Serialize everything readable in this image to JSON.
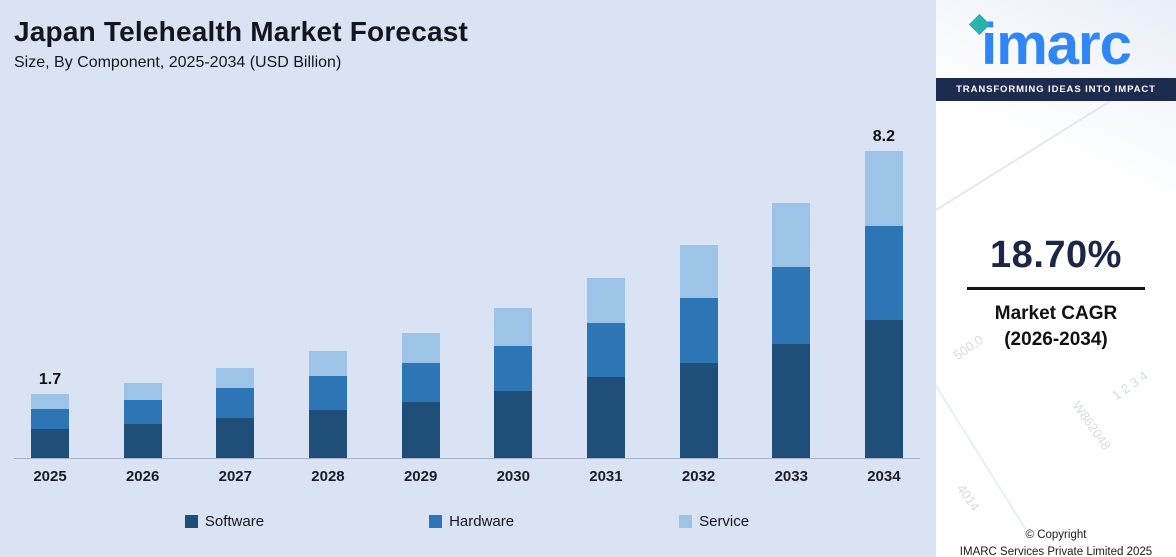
{
  "header": {
    "title": "Japan Telehealth Market Forecast",
    "subtitle": "Size, By Component, 2025-2034 (USD Billion)"
  },
  "chart_data": {
    "type": "bar",
    "stacked": true,
    "title": "Japan Telehealth Market Forecast",
    "subtitle": "Size, By Component, 2025-2034 (USD Billion)",
    "unit": "USD Billion",
    "categories": [
      "2025",
      "2026",
      "2027",
      "2028",
      "2029",
      "2030",
      "2031",
      "2032",
      "2033",
      "2034"
    ],
    "series": [
      {
        "name": "Software",
        "color": "#1f4e79",
        "values": [
          0.77,
          0.9,
          1.08,
          1.28,
          1.5,
          1.8,
          2.16,
          2.55,
          3.05,
          3.7
        ]
      },
      {
        "name": "Hardware",
        "color": "#2e75b6",
        "values": [
          0.55,
          0.65,
          0.78,
          0.92,
          1.05,
          1.2,
          1.44,
          1.72,
          2.05,
          2.5
        ]
      },
      {
        "name": "Service",
        "color": "#9dc3e6",
        "values": [
          0.38,
          0.45,
          0.54,
          0.65,
          0.8,
          1.0,
          1.2,
          1.43,
          1.7,
          2.0
        ]
      }
    ],
    "totals": [
      1.7,
      2.0,
      2.4,
      2.85,
      3.35,
      4.0,
      4.8,
      5.7,
      6.8,
      8.2
    ],
    "bar_labels": [
      "1.7",
      "",
      "",
      "",
      "",
      "",
      "",
      "",
      "",
      "8.2"
    ],
    "ylim": [
      0,
      8.2
    ],
    "grid": false,
    "legend_position": "bottom"
  },
  "sidebar": {
    "logo_text": "imarc",
    "tagline": "TRANSFORMING IDEAS INTO IMPACT",
    "cagr_value": "18.70%",
    "cagr_label": "Market CAGR",
    "cagr_years": "(2026-2034)",
    "watermarks": [
      "500.0",
      "1 2 3 4",
      "W862048",
      "4014"
    ],
    "copyright_line1": "© Copyright",
    "copyright_line2": "IMARC Services Private Limited 2025"
  },
  "colors": {
    "chart_background": "#dae3f3",
    "software": "#1f4e79",
    "hardware": "#2e75b6",
    "service": "#9dc3e6",
    "logo_blue": "#2e86f7",
    "logo_teal": "#2ab3aa",
    "tagline_navy": "#1d2b4f"
  }
}
